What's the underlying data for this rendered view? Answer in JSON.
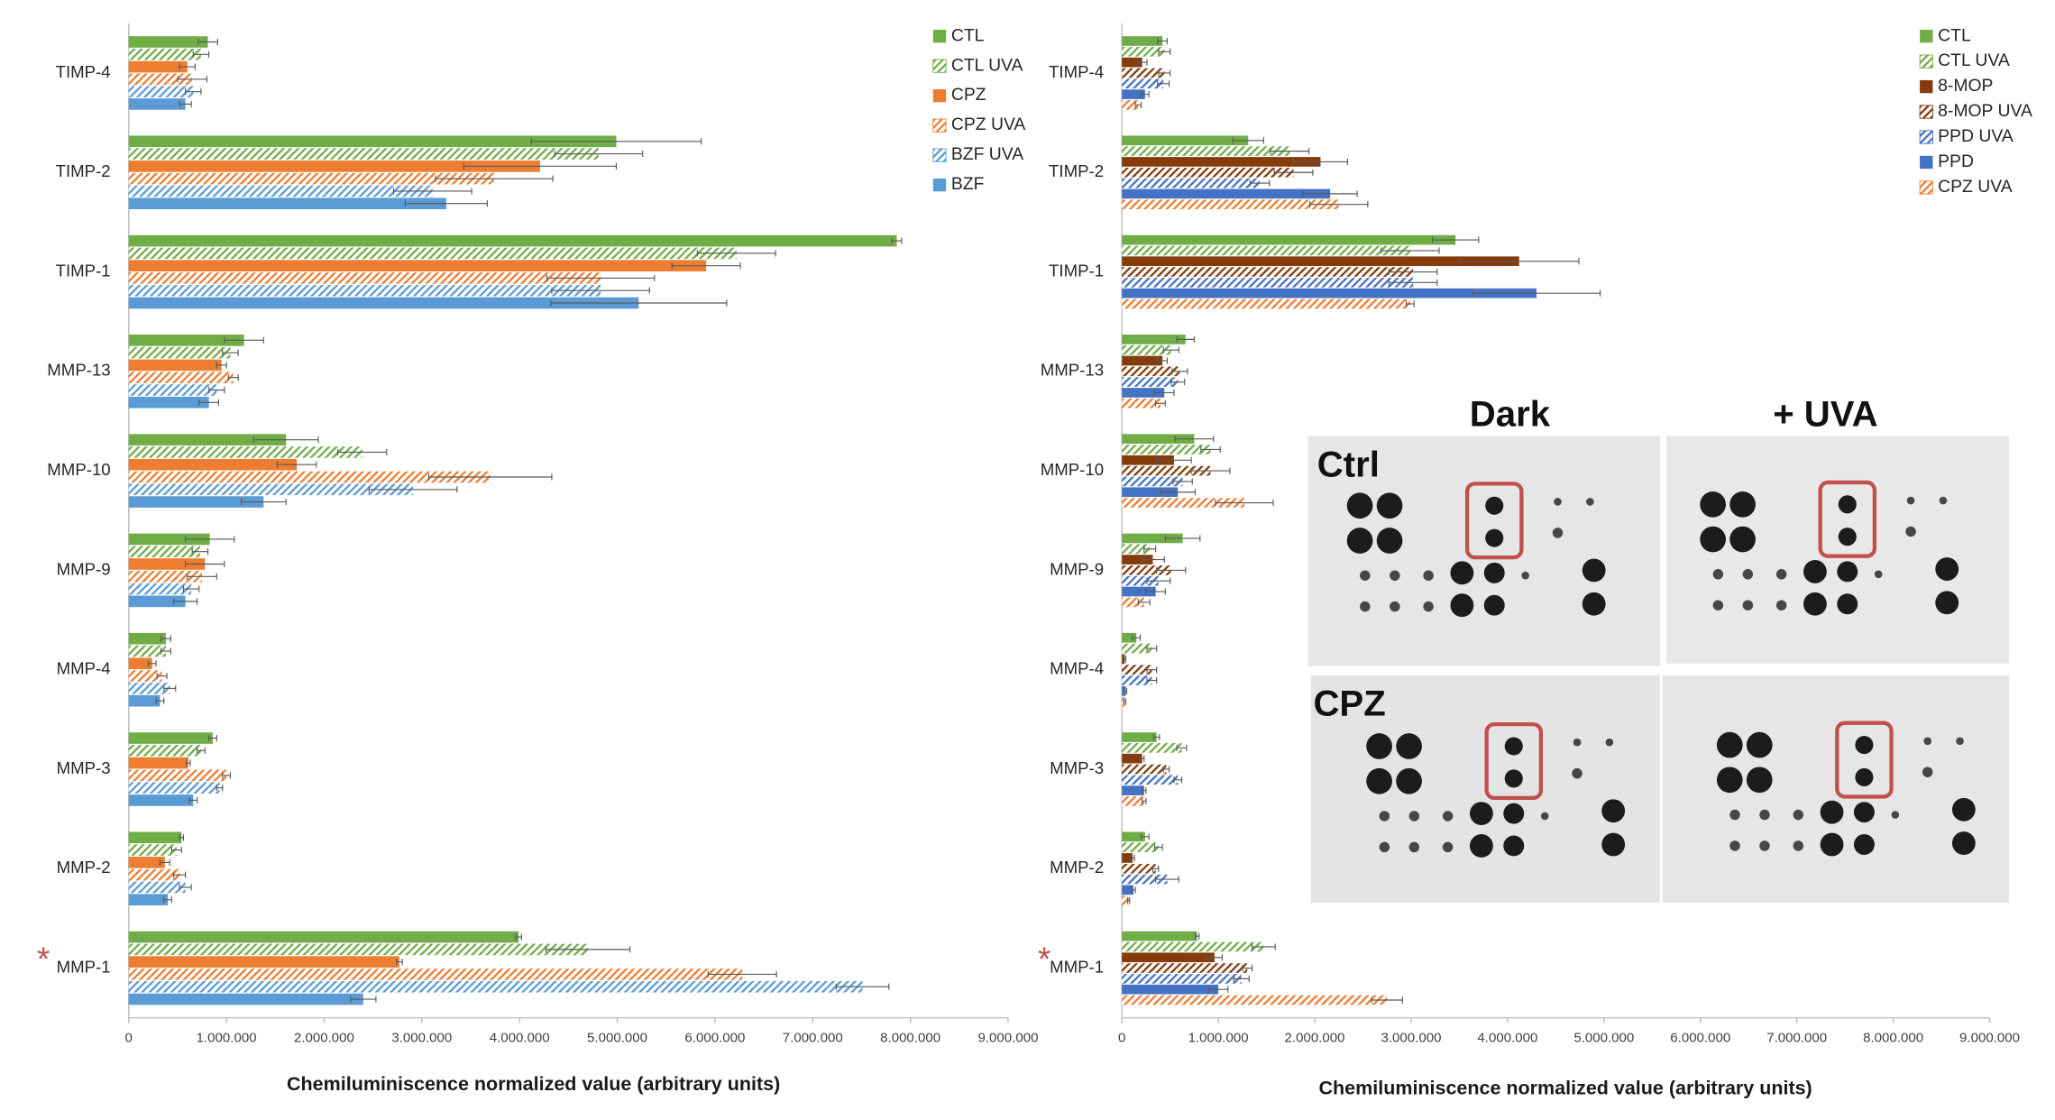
{
  "chart_data": [
    {
      "type": "bar",
      "orientation": "horizontal",
      "categories": [
        "TIMP-4",
        "TIMP-2",
        "TIMP-1",
        "MMP-13",
        "MMP-10",
        "MMP-9",
        "MMP-4",
        "MMP-3",
        "MMP-2",
        "MMP-1"
      ],
      "series": [
        {
          "name": "CTL",
          "color": "#70ad47",
          "hatched": false,
          "values": [
            810000,
            4990000,
            7860000,
            1180000,
            1610000,
            830000,
            380000,
            860000,
            540000,
            3990000
          ],
          "errors": [
            100000,
            870000,
            50000,
            200000,
            330000,
            250000,
            50000,
            40000,
            20000,
            30000
          ]
        },
        {
          "name": "CTL UVA",
          "color": "#70ad47",
          "hatched": true,
          "values": [
            740000,
            4810000,
            6220000,
            1040000,
            2390000,
            730000,
            380000,
            740000,
            490000,
            4700000
          ],
          "errors": [
            80000,
            450000,
            400000,
            80000,
            250000,
            80000,
            50000,
            40000,
            50000,
            430000
          ]
        },
        {
          "name": "CPZ",
          "color": "#ed7d31",
          "hatched": false,
          "values": [
            600000,
            4210000,
            5910000,
            950000,
            1720000,
            780000,
            240000,
            610000,
            370000,
            2770000
          ],
          "errors": [
            80000,
            780000,
            350000,
            50000,
            200000,
            200000,
            40000,
            20000,
            50000,
            30000
          ]
        },
        {
          "name": "CPZ UVA",
          "color": "#ed7d31",
          "hatched": true,
          "values": [
            650000,
            3740000,
            4830000,
            1070000,
            3700000,
            750000,
            340000,
            1000000,
            520000,
            6280000
          ],
          "errors": [
            150000,
            600000,
            550000,
            50000,
            630000,
            150000,
            50000,
            40000,
            60000,
            350000
          ]
        },
        {
          "name": "BZF UVA",
          "color": "#5b9bd5",
          "hatched": true,
          "values": [
            660000,
            3110000,
            4830000,
            900000,
            2910000,
            640000,
            420000,
            930000,
            580000,
            7510000
          ],
          "errors": [
            80000,
            400000,
            500000,
            80000,
            450000,
            80000,
            60000,
            30000,
            60000,
            270000
          ]
        },
        {
          "name": "BZF",
          "color": "#5b9bd5",
          "hatched": false,
          "values": [
            580000,
            3250000,
            5220000,
            820000,
            1380000,
            580000,
            320000,
            660000,
            400000,
            2400000
          ],
          "errors": [
            60000,
            420000,
            900000,
            100000,
            230000,
            120000,
            40000,
            40000,
            40000,
            130000
          ]
        }
      ],
      "xlabel": "Chemiluminiscence normalized value (arbitrary units)",
      "xlim": [
        0,
        9000000
      ],
      "xticks": [
        0,
        {
          "value": 1000000,
          "label": "1.000.000"
        },
        {
          "value": 2000000,
          "label": "2.000.000"
        },
        {
          "value": 3000000,
          "label": "3.000.000"
        },
        {
          "value": 4000000,
          "label": "4.000.000"
        },
        {
          "value": 5000000,
          "label": "5.000.000"
        },
        {
          "value": 6000000,
          "label": "6.000.000"
        },
        {
          "value": 7000000,
          "label": "7.000.000"
        },
        {
          "value": 8000000,
          "label": "8.000.000"
        },
        {
          "value": 9000000,
          "label": "9.000.000"
        }
      ],
      "annotation": "*",
      "legend": "top-right"
    },
    {
      "type": "bar",
      "orientation": "horizontal",
      "categories": [
        "TIMP-4",
        "TIMP-2",
        "TIMP-1",
        "MMP-13",
        "MMP-10",
        "MMP-9",
        "MMP-4",
        "MMP-3",
        "MMP-2",
        "MMP-1"
      ],
      "series": [
        {
          "name": "CTL",
          "color": "#70ad47",
          "hatched": false,
          "values": [
            420000,
            1310000,
            3460000,
            660000,
            750000,
            630000,
            150000,
            360000,
            240000,
            780000
          ],
          "errors": [
            50000,
            160000,
            240000,
            90000,
            200000,
            180000,
            40000,
            30000,
            40000,
            20000
          ]
        },
        {
          "name": "CTL UVA",
          "color": "#70ad47",
          "hatched": true,
          "values": [
            440000,
            1740000,
            2990000,
            510000,
            920000,
            290000,
            310000,
            620000,
            380000,
            1470000
          ],
          "errors": [
            60000,
            200000,
            300000,
            80000,
            100000,
            60000,
            50000,
            50000,
            40000,
            120000
          ]
        },
        {
          "name": "8-MOP",
          "color": "#843c0c",
          "hatched": false,
          "values": [
            210000,
            2060000,
            4120000,
            420000,
            540000,
            320000,
            30000,
            210000,
            110000,
            960000
          ],
          "errors": [
            50000,
            280000,
            620000,
            50000,
            180000,
            120000,
            10000,
            20000,
            20000,
            80000
          ]
        },
        {
          "name": "8-MOP UVA",
          "color": "#843c0c",
          "hatched": true,
          "values": [
            440000,
            1780000,
            3020000,
            600000,
            920000,
            510000,
            310000,
            460000,
            350000,
            1300000
          ],
          "errors": [
            60000,
            200000,
            250000,
            80000,
            200000,
            150000,
            50000,
            30000,
            30000,
            50000
          ]
        },
        {
          "name": "PPD UVA",
          "color": "#4472c4",
          "hatched": true,
          "values": [
            430000,
            1430000,
            3020000,
            580000,
            630000,
            380000,
            310000,
            580000,
            470000,
            1240000
          ],
          "errors": [
            60000,
            100000,
            250000,
            70000,
            100000,
            120000,
            50000,
            40000,
            120000,
            80000
          ]
        },
        {
          "name": "PPD",
          "color": "#4472c4",
          "hatched": false,
          "values": [
            240000,
            2160000,
            4300000,
            440000,
            580000,
            350000,
            40000,
            230000,
            120000,
            1000000
          ],
          "errors": [
            40000,
            280000,
            660000,
            100000,
            180000,
            100000,
            10000,
            20000,
            20000,
            100000
          ]
        },
        {
          "name": "CPZ UVA",
          "color": "#ed7d31",
          "hatched": true,
          "values": [
            170000,
            2250000,
            2990000,
            400000,
            1270000,
            230000,
            30000,
            230000,
            70000,
            2750000
          ],
          "errors": [
            30000,
            300000,
            40000,
            50000,
            300000,
            60000,
            10000,
            20000,
            10000,
            160000
          ]
        }
      ],
      "xlabel": "Chemiluminiscence normalized value (arbitrary units)",
      "xlim": [
        0,
        9000000
      ],
      "xticks": [
        0,
        {
          "value": 1000000,
          "label": "1.000.000"
        },
        {
          "value": 2000000,
          "label": "2.000.000"
        },
        {
          "value": 3000000,
          "label": "3.000.000"
        },
        {
          "value": 4000000,
          "label": "4.000.000"
        },
        {
          "value": 5000000,
          "label": "5.000.000"
        },
        {
          "value": 6000000,
          "label": "6.000.000"
        },
        {
          "value": 7000000,
          "label": "7.000.000"
        },
        {
          "value": 8000000,
          "label": "8.000.000"
        },
        {
          "value": 9000000,
          "label": "9.000.000"
        }
      ],
      "annotation": "*",
      "legend": "top-right"
    }
  ],
  "inset": {
    "columns": [
      "Dark",
      "+ UVA"
    ],
    "rows": [
      "Ctrl",
      "CPZ"
    ]
  }
}
